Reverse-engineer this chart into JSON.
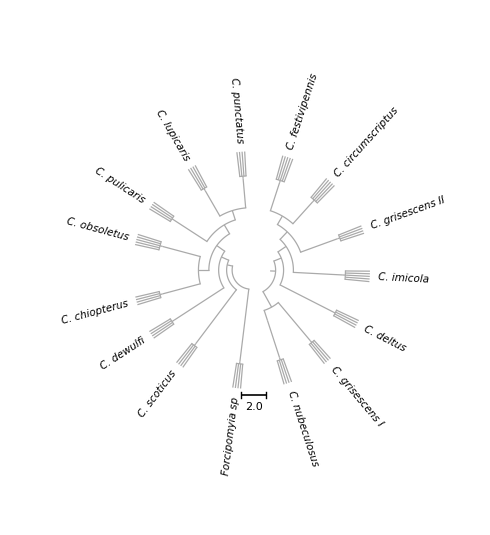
{
  "line_color": "#aaaaaa",
  "bg_color": "#ffffff",
  "scale_bar_label": "2.0",
  "label_fontsize": 7.5,
  "leaf_angle_deg": {
    "C. punctatus": 95,
    "C. lupicaris": 120,
    "C. pulicaris": 147,
    "C. obsoletus": 165,
    "C. chiopterus": -165,
    "C. dewulfi": -147,
    "C. scoticus": -127,
    "Forcipomyia sp": -97,
    "C. nubeculosus": -72,
    "C. grisescens I": -50,
    "C. deltus": -27,
    "C. imicola": -3,
    "C. grisescens II": 20,
    "C. circumscriptus": 48,
    "C. festivipennis": 72
  },
  "spec_counts": {
    "C. punctatus": 4,
    "C. lupicaris": 4,
    "C. pulicaris": 4,
    "C. obsoletus": 5,
    "C. chiopterus": 4,
    "C. dewulfi": 4,
    "C. scoticus": 4,
    "Forcipomyia sp": 4,
    "C. nubeculosus": 4,
    "C. grisescens I": 4,
    "C. deltus": 4,
    "C. imicola": 5,
    "C. grisescens II": 4,
    "C. circumscriptus": 5,
    "C. festivipennis": 5
  },
  "tree": {
    "r": 0.155,
    "children": [
      {
        "name": "Forcipomyia sp",
        "r": 0.75
      },
      {
        "r": 0.2,
        "children": [
          {
            "r": 0.265,
            "children": [
              {
                "r": 0.345,
                "children": [
                  {
                    "r": 0.43,
                    "children": [
                      {
                        "r": 0.51,
                        "children": [
                          {
                            "name": "C. punctatus",
                            "r": 0.75
                          },
                          {
                            "name": "C. lupicaris",
                            "r": 0.75
                          }
                        ]
                      },
                      {
                        "name": "C. pulicaris",
                        "r": 0.75
                      }
                    ]
                  },
                  {
                    "r": 0.43,
                    "children": [
                      {
                        "name": "C. obsoletus",
                        "r": 0.75
                      },
                      {
                        "name": "C. chiopterus",
                        "r": 0.75
                      }
                    ]
                  }
                ]
              },
              {
                "name": "C. dewulfi",
                "r": 0.75
              }
            ]
          },
          {
            "name": "C. scoticus",
            "r": 0.75
          }
        ]
      },
      {
        "r": 0.2,
        "children": [
          {
            "r": 0.265,
            "children": [
              {
                "r": 0.345,
                "children": [
                  {
                    "r": 0.43,
                    "children": [
                      {
                        "r": 0.51,
                        "children": [
                          {
                            "name": "C. festivipennis",
                            "r": 0.75
                          },
                          {
                            "name": "C. circumscriptus",
                            "r": 0.75
                          }
                        ]
                      },
                      {
                        "name": "C. grisescens II",
                        "r": 0.75
                      }
                    ]
                  },
                  {
                    "name": "C. imicola",
                    "r": 0.75
                  }
                ]
              },
              {
                "name": "C. deltus",
                "r": 0.75
              }
            ]
          },
          {
            "r": 0.345,
            "children": [
              {
                "name": "C. grisescens I",
                "r": 0.75
              },
              {
                "r": 0.43,
                "children": [
                  {
                    "name": "C. nubeculosus",
                    "r": 0.75
                  }
                ]
              }
            ]
          }
        ]
      }
    ]
  }
}
